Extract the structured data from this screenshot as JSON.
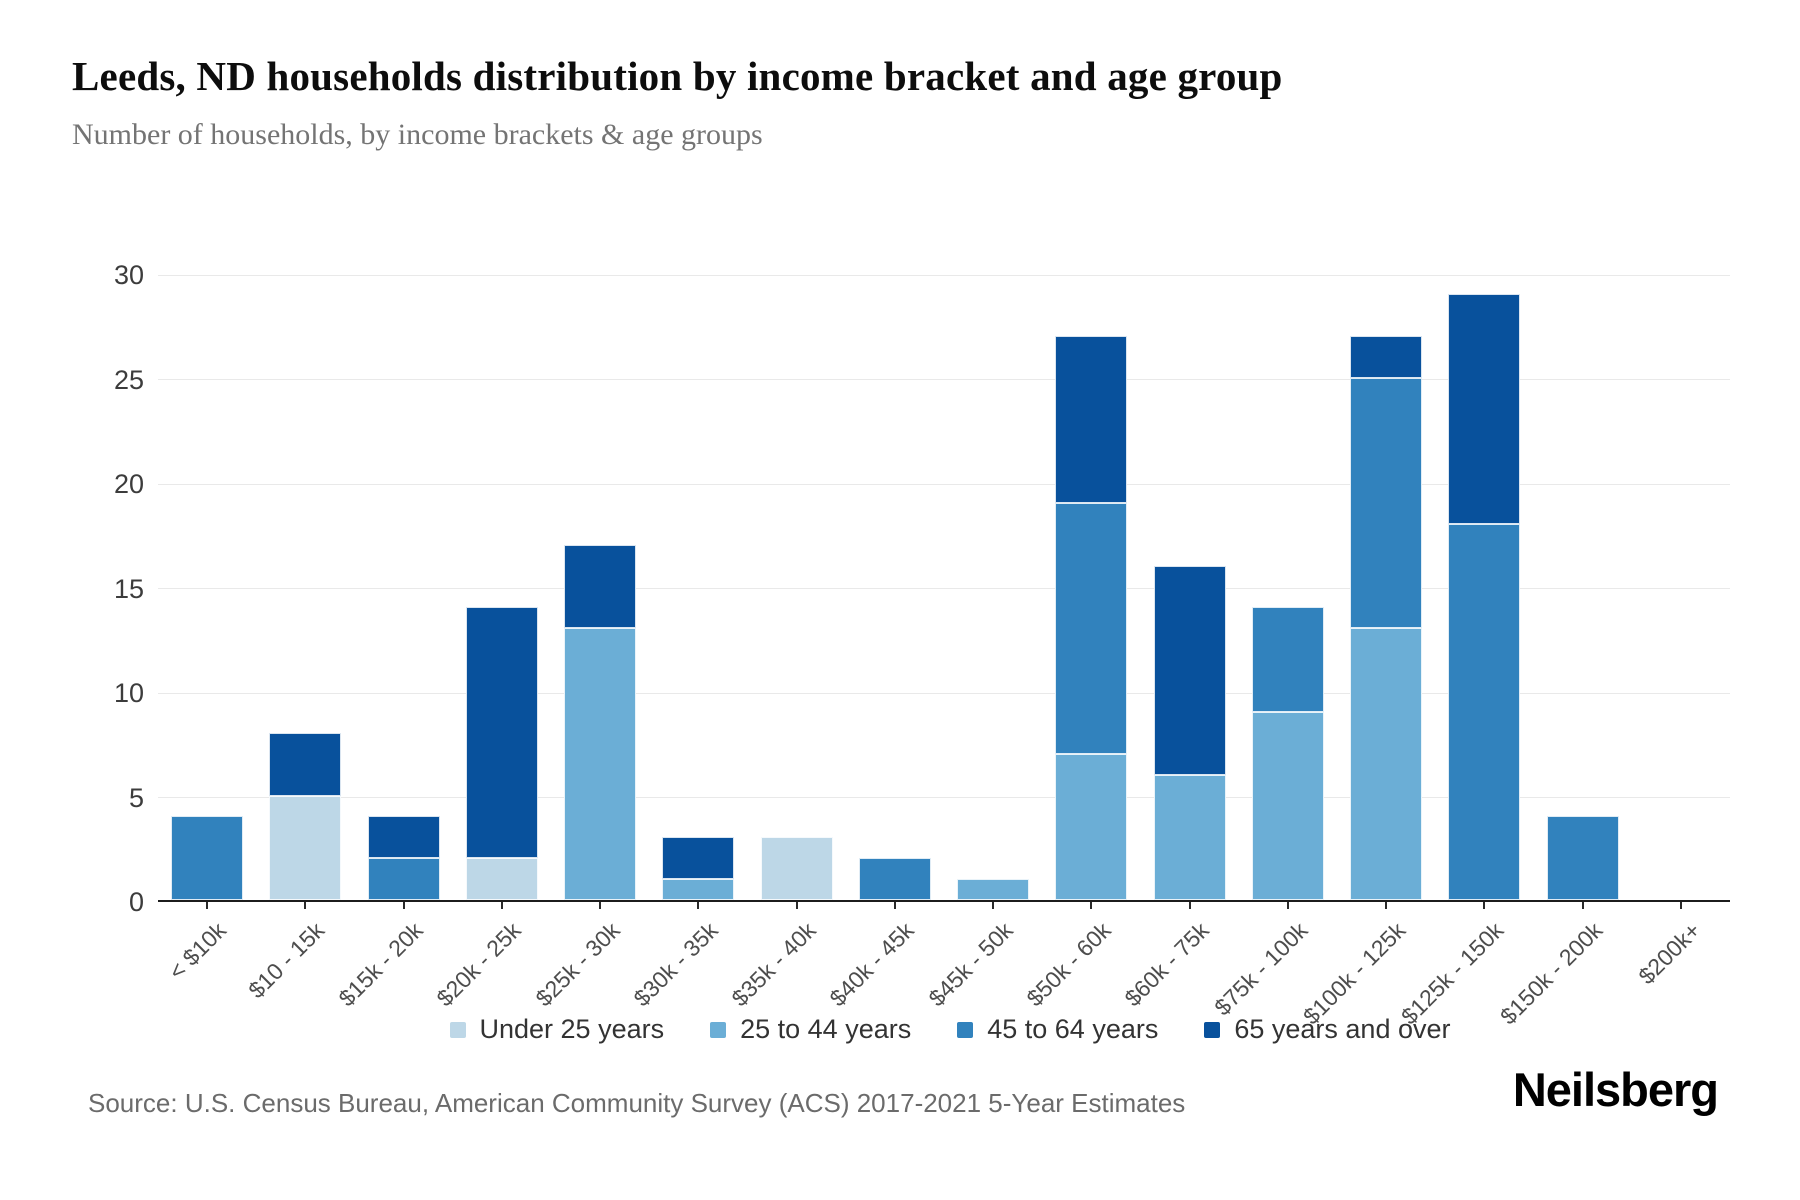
{
  "chart_data": {
    "type": "bar",
    "stacked": true,
    "title": "Leeds, ND households distribution by income bracket and age group",
    "subtitle": "Number of households, by income brackets & age groups",
    "categories": [
      "< $10k",
      "$10 - 15k",
      "$15k - 20k",
      "$20k - 25k",
      "$25k - 30k",
      "$30k - 35k",
      "$35k - 40k",
      "$40k - 45k",
      "$45k - 50k",
      "$50k - 60k",
      "$60k - 75k",
      "$75k - 100k",
      "$100k - 125k",
      "$125k - 150k",
      "$150k - 200k",
      "$200k+"
    ],
    "series": [
      {
        "name": "Under 25 years",
        "color": "#bdd7e7",
        "values": [
          0,
          5,
          0,
          2,
          0,
          0,
          3,
          0,
          0,
          0,
          0,
          0,
          0,
          0,
          0,
          0
        ]
      },
      {
        "name": "25 to 44 years",
        "color": "#6baed6",
        "values": [
          0,
          0,
          0,
          0,
          13,
          1,
          0,
          0,
          1,
          7,
          6,
          9,
          13,
          0,
          0,
          0
        ]
      },
      {
        "name": "45 to 64 years",
        "color": "#3182bd",
        "values": [
          4,
          0,
          2,
          0,
          0,
          0,
          0,
          2,
          0,
          12,
          0,
          5,
          12,
          18,
          4,
          0
        ]
      },
      {
        "name": "65 years and over",
        "color": "#08519c",
        "values": [
          0,
          3,
          2,
          12,
          4,
          2,
          0,
          0,
          0,
          8,
          10,
          0,
          2,
          11,
          0,
          0
        ]
      }
    ],
    "xlabel": "",
    "ylabel": "",
    "ylim": [
      0,
      30
    ],
    "yticks": [
      0,
      5,
      10,
      15,
      20,
      25,
      30
    ],
    "grid": true,
    "legend_position": "bottom"
  },
  "footer": {
    "source": "Source: U.S. Census Bureau, American Community Survey (ACS) 2017-2021 5-Year Estimates",
    "brand": "Neilsberg"
  }
}
